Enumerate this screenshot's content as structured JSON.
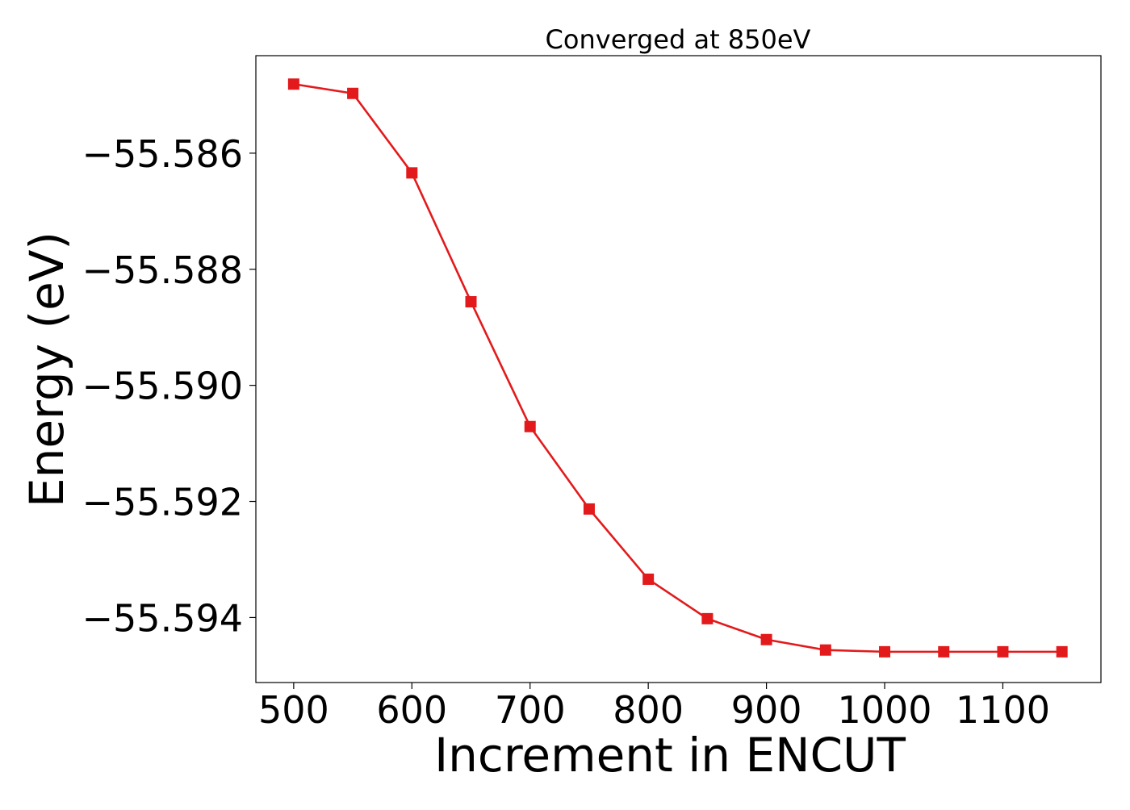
{
  "chart_data": {
    "type": "line",
    "title": "Converged at 850eV",
    "xlabel": "Increment in ENCUT",
    "ylabel": "Energy (eV)",
    "x": [
      500,
      550,
      600,
      650,
      700,
      750,
      800,
      850,
      900,
      950,
      1000,
      1050,
      1100,
      1150
    ],
    "series": [
      {
        "values": [
          -55.58481,
          -55.58497,
          -55.58634,
          -55.58856,
          -55.59071,
          -55.59213,
          -55.59334,
          -55.59402,
          -55.59438,
          -55.59456,
          -55.59459,
          -55.59459,
          -55.59459,
          -55.59459
        ],
        "color": "#e31a1c",
        "marker": "square"
      }
    ],
    "xlim": [
      468,
      1183
    ],
    "ylim": [
      -55.59512,
      -55.58432
    ],
    "xticks": [
      500,
      600,
      700,
      800,
      900,
      1000,
      1100
    ],
    "yticks": [
      -55.586,
      -55.588,
      -55.59,
      -55.592,
      -55.594
    ],
    "xtick_labels": [
      "500",
      "600",
      "700",
      "800",
      "900",
      "1000",
      "1100"
    ],
    "ytick_labels": [
      "−55.586",
      "−55.588",
      "−55.590",
      "−55.592",
      "−55.594"
    ],
    "grid": false,
    "legend": "none"
  }
}
